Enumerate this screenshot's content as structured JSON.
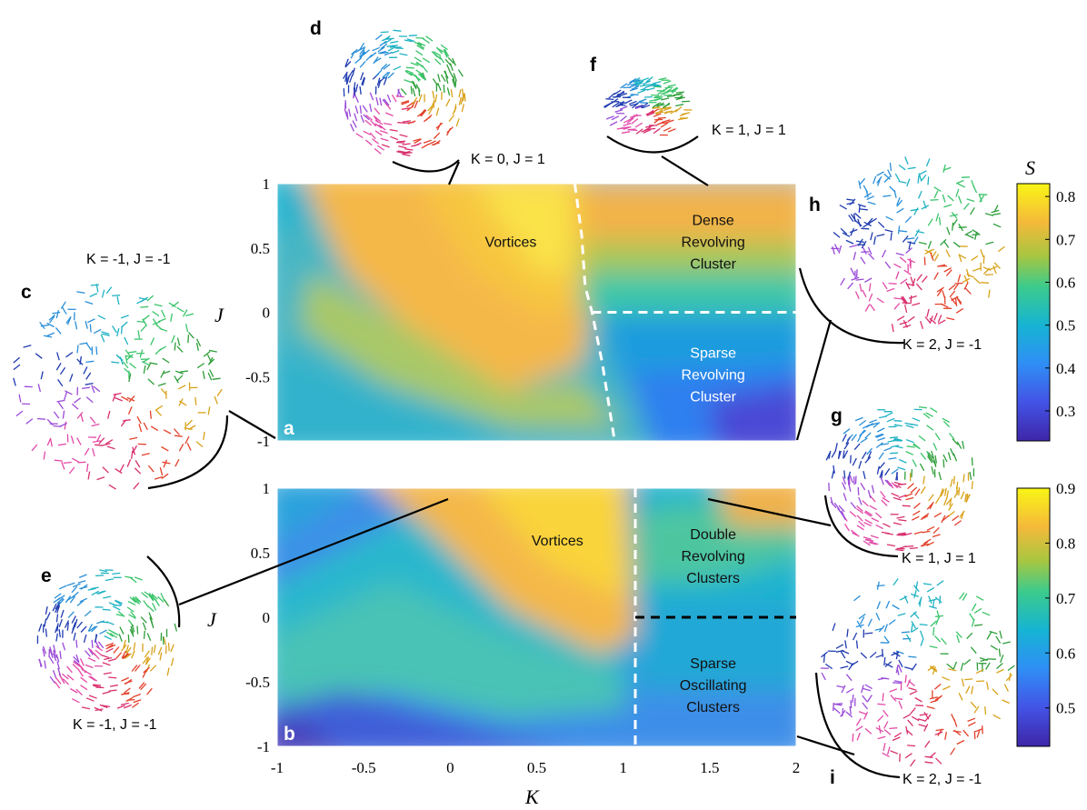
{
  "chart_data": [
    {
      "type": "heatmap",
      "panel": "a",
      "xlabel": "",
      "ylabel": "J",
      "xlim": [
        -1,
        2
      ],
      "ylim": [
        -1,
        1
      ],
      "x_ticks": [
        "-1",
        "-0.5",
        "0",
        "0.5",
        "1",
        "1.5",
        "2"
      ],
      "y_ticks": [
        "1",
        "0.5",
        "0",
        "-0.5",
        "-1"
      ],
      "colorbar": {
        "label": "S",
        "range": [
          0.23,
          0.83
        ],
        "ticks": [
          "0.8",
          "0.7",
          "0.6",
          "0.5",
          "0.4",
          "0.3"
        ]
      },
      "regions": [
        {
          "lines": [
            "Vortices"
          ],
          "x": 0.35,
          "y": 0.55
        },
        {
          "lines": [
            "Dense",
            "Revolving",
            "Cluster"
          ],
          "x": 1.52,
          "y": 0.55
        },
        {
          "lines": [
            "Sparse",
            "Revolving",
            "Cluster"
          ],
          "x": 1.52,
          "y": -0.48
        }
      ],
      "boundaries": [
        {
          "points": [
            [
              0.72,
              1
            ],
            [
              0.76,
              0.6
            ],
            [
              0.78,
              0.2
            ],
            [
              0.82,
              0
            ],
            [
              0.88,
              -0.4
            ],
            [
              0.95,
              -1
            ]
          ]
        },
        {
          "points": [
            [
              0.82,
              0
            ],
            [
              2,
              0
            ]
          ]
        }
      ]
    },
    {
      "type": "heatmap",
      "panel": "b",
      "xlabel": "K",
      "ylabel": "J",
      "xlim": [
        -1,
        2
      ],
      "ylim": [
        -1,
        1
      ],
      "x_ticks": [
        "-1",
        "-0.5",
        "0",
        "0.5",
        "1",
        "1.5",
        "2"
      ],
      "y_ticks": [
        "1",
        "0.5",
        "0",
        "-0.5",
        "-1"
      ],
      "colorbar": {
        "label": "",
        "range": [
          0.43,
          0.9
        ],
        "ticks": [
          "0.9",
          "0.8",
          "0.7",
          "0.6",
          "0.5"
        ]
      },
      "regions": [
        {
          "lines": [
            "Vortices"
          ],
          "x": 0.62,
          "y": 0.6
        },
        {
          "lines": [
            "Double",
            "Revolving",
            "Clusters"
          ],
          "x": 1.52,
          "y": 0.48
        },
        {
          "lines": [
            "Sparse",
            "Oscillating",
            "Clusters"
          ],
          "x": 1.52,
          "y": -0.52
        }
      ],
      "boundaries": [
        {
          "points": [
            [
              1.07,
              1
            ],
            [
              1.07,
              -1
            ]
          ]
        },
        {
          "points": [
            [
              1.07,
              0
            ],
            [
              2,
              0
            ]
          ]
        }
      ]
    }
  ],
  "insets": {
    "d": {
      "letter": "d",
      "caption": "K = 0, J = 1",
      "pattern": "vortex"
    },
    "f": {
      "letter": "f",
      "caption": "K = 1, J = 1",
      "pattern": "dense"
    },
    "c": {
      "letter": "c",
      "caption": "K = -1, J = -1",
      "pattern": "disordered"
    },
    "h": {
      "letter": "h",
      "caption": "K = 2, J = -1",
      "pattern": "sparse"
    },
    "e": {
      "letter": "e",
      "caption": "K = -1, J = -1",
      "pattern": "vortex"
    },
    "g": {
      "letter": "g",
      "caption": "K = 1, J = 1",
      "pattern": "double"
    },
    "i": {
      "letter": "i",
      "caption": "K = 2, J = -1",
      "pattern": "oscillating"
    }
  },
  "colors": {
    "parula_low": "#3e26a8",
    "parula_mid": "#15b2c8",
    "parula_high": "#f9fb15"
  }
}
